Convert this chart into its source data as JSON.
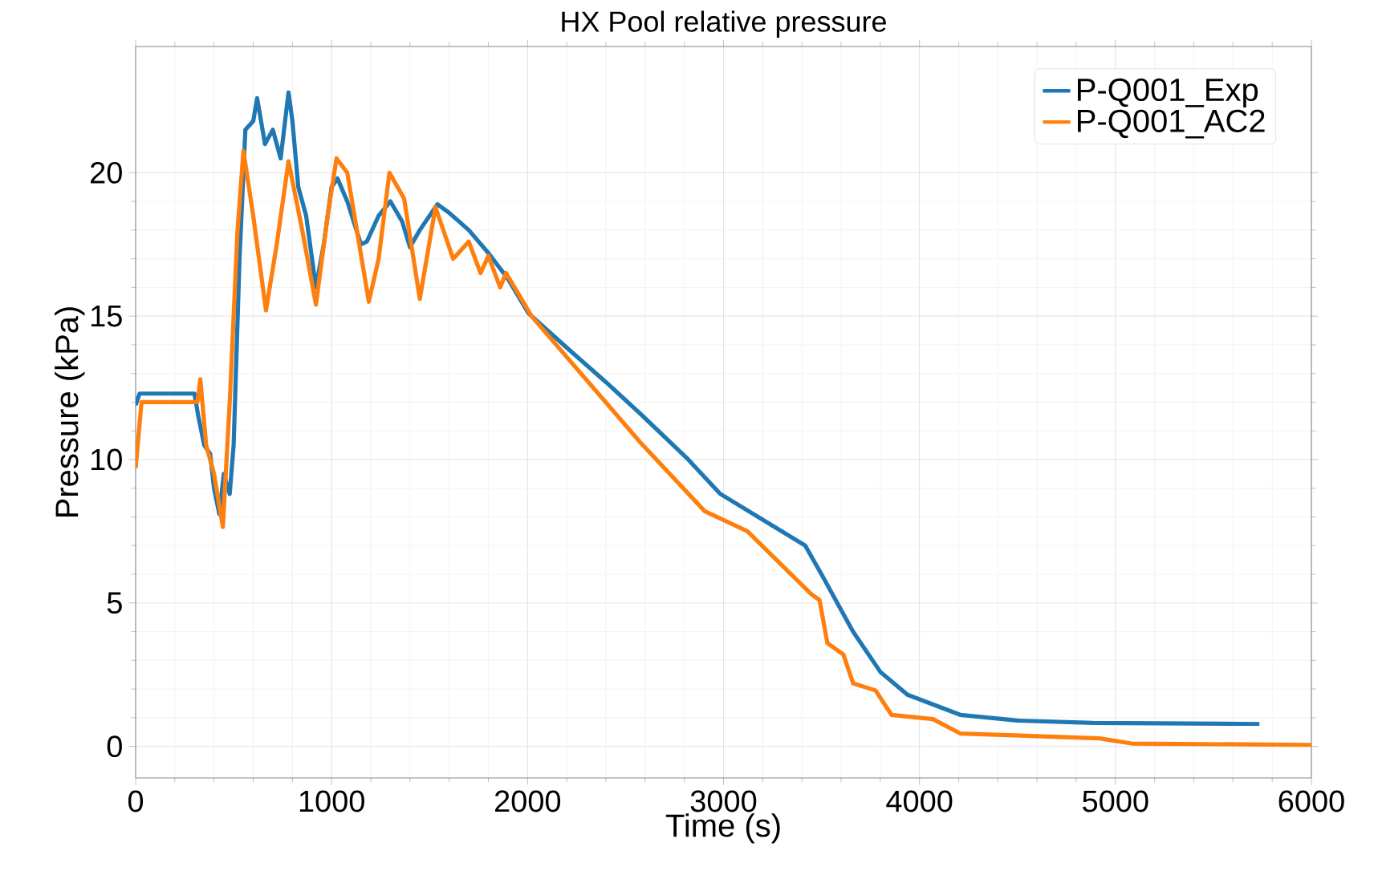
{
  "chart_data": {
    "type": "line",
    "title": "HX Pool relative pressure",
    "xlabel": "Time (s)",
    "ylabel": "Pressure (kPa)",
    "xlim": [
      0,
      6000
    ],
    "ylim": [
      -1.1,
      24.4
    ],
    "xticks": [
      0,
      1000,
      2000,
      3000,
      4000,
      5000,
      6000
    ],
    "yticks": [
      0,
      5,
      10,
      15,
      20
    ],
    "grid": true,
    "legend": "top right",
    "line_style": "solid",
    "marker": "none",
    "series": [
      {
        "name": "P-Q001_Exp",
        "color": "#1f77b4",
        "x": [
          0,
          20,
          300,
          320,
          350,
          380,
          400,
          427,
          450,
          480,
          500,
          530,
          560,
          600,
          620,
          660,
          700,
          740,
          780,
          800,
          830,
          870,
          920,
          960,
          1000,
          1030,
          1080,
          1150,
          1180,
          1240,
          1300,
          1360,
          1400,
          1450,
          1500,
          1540,
          1600,
          1700,
          1800,
          1900,
          2005,
          2200,
          2400,
          2575,
          2820,
          2984,
          3200,
          3417,
          3500,
          3661,
          3800,
          3939,
          4208,
          4500,
          4886,
          5735
        ],
        "values": [
          11.9,
          12.3,
          12.3,
          11.5,
          10.5,
          10.2,
          9.0,
          8.1,
          9.5,
          8.8,
          10.5,
          17,
          21.5,
          21.8,
          22.6,
          21.0,
          21.5,
          20.5,
          22.8,
          21.8,
          19.5,
          18.5,
          16.0,
          17.5,
          19.5,
          19.8,
          19.0,
          17.5,
          17.6,
          18.5,
          19.0,
          18.3,
          17.4,
          18.0,
          18.5,
          18.9,
          18.6,
          18.0,
          17.2,
          16.3,
          15.1,
          13.9,
          12.7,
          11.6,
          10.0,
          8.8,
          7.9,
          7.0,
          6.0,
          4.0,
          2.6,
          1.8,
          1.1,
          0.9,
          0.82,
          0.78
        ]
      },
      {
        "name": "P-Q001_AC2",
        "color": "#ff7f0e",
        "x": [
          0,
          30,
          315,
          330,
          360,
          400,
          445,
          480,
          520,
          550,
          600,
          665,
          720,
          780,
          850,
          920,
          980,
          1025,
          1080,
          1190,
          1240,
          1295,
          1370,
          1450,
          1530,
          1620,
          1700,
          1760,
          1800,
          1860,
          1890,
          1960,
          2020,
          2575,
          2904,
          3122,
          3449,
          3490,
          3530,
          3612,
          3661,
          3776,
          3857,
          4069,
          4208,
          4918,
          5082,
          6000
        ],
        "values": [
          9.7,
          12.0,
          12.0,
          12.8,
          10.5,
          9.5,
          7.65,
          12,
          18,
          20.76,
          18.5,
          15.2,
          17.5,
          20.4,
          18.0,
          15.4,
          18.5,
          20.5,
          20.0,
          15.5,
          17.0,
          20.0,
          19.1,
          15.6,
          18.8,
          17.0,
          17.6,
          16.5,
          17.1,
          16.0,
          16.5,
          15.7,
          15.0,
          10.6,
          8.2,
          7.5,
          5.3,
          5.1,
          3.6,
          3.2,
          2.2,
          1.95,
          1.1,
          0.95,
          0.45,
          0.28,
          0.1,
          0.05
        ]
      }
    ]
  }
}
